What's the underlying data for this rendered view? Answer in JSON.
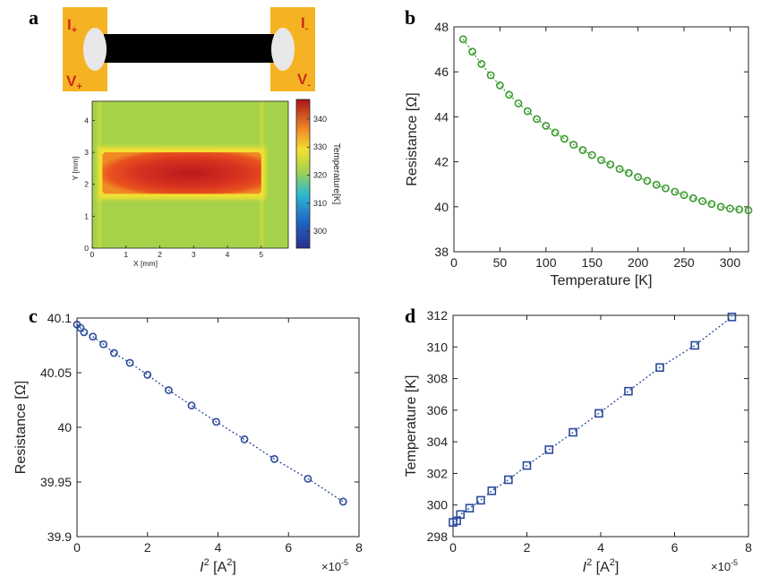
{
  "chart_data": [
    {
      "panel": "a",
      "type": "heatmap",
      "schematic_labels": {
        "i_plus": "I",
        "i_plus_sub": "+",
        "v_plus": "V",
        "v_plus_sub": "+",
        "i_minus": "I",
        "i_minus_sub": "-",
        "v_minus": "V",
        "v_minus_sub": "-"
      },
      "xlabel": "X [mm]",
      "ylabel": "Y [mm]",
      "xlim": [
        0,
        5.8
      ],
      "ylim": [
        0,
        4.6
      ],
      "xticks": [
        "0",
        "1",
        "2",
        "3",
        "4",
        "5"
      ],
      "yticks": [
        "0",
        "1",
        "2",
        "3",
        "4"
      ],
      "colorbar": {
        "label": "Temperature[K]",
        "range": [
          294,
          347
        ],
        "ticks": [
          "300",
          "310",
          "320",
          "330",
          "340"
        ],
        "tick_values": [
          300,
          310,
          320,
          330,
          340
        ]
      },
      "background_temperature": 323,
      "hot_region": {
        "x": [
          0.3,
          5.0
        ],
        "y": [
          1.7,
          3.0
        ],
        "peak_temperature": 343
      }
    },
    {
      "panel": "b",
      "type": "scatter",
      "xlabel": "Temperature [K]",
      "ylabel": "Resistance [Ω]",
      "xlim": [
        0,
        320
      ],
      "ylim": [
        38,
        48
      ],
      "xticks": [
        "0",
        "50",
        "100",
        "150",
        "200",
        "250",
        "300"
      ],
      "yticks": [
        "38",
        "40",
        "42",
        "44",
        "46",
        "48"
      ],
      "color": "#3a9a2e",
      "marker": "circle",
      "series": [
        {
          "x": [
            10,
            20,
            30,
            40,
            50,
            60,
            70,
            80,
            90,
            100,
            110,
            120,
            130,
            140,
            150,
            160,
            170,
            180,
            190,
            200,
            210,
            220,
            230,
            240,
            250,
            260,
            270,
            280,
            290,
            300,
            310,
            320
          ],
          "y": [
            47.45,
            46.9,
            46.35,
            45.85,
            45.4,
            44.98,
            44.6,
            44.25,
            43.9,
            43.6,
            43.3,
            43.02,
            42.76,
            42.52,
            42.3,
            42.08,
            41.88,
            41.68,
            41.5,
            41.32,
            41.15,
            40.98,
            40.82,
            40.67,
            40.52,
            40.38,
            40.25,
            40.12,
            40.0,
            39.92,
            39.88,
            39.84
          ]
        }
      ]
    },
    {
      "panel": "c",
      "type": "scatter",
      "xlabel": "I",
      "xlabel_sup": "2",
      "xlabel_units": " [A",
      "xlabel_units_sup": "2",
      "xlabel_close": "]",
      "ylabel": "Resistance [Ω]",
      "xlim": [
        0,
        8
      ],
      "ylim": [
        39.9,
        40.1
      ],
      "xticks": [
        "0",
        "2",
        "4",
        "6",
        "8"
      ],
      "yticks": [
        "39.9",
        "39.95",
        "40",
        "40.05",
        "40.1"
      ],
      "x_multiplier": "×10",
      "x_multiplier_exp": "-5",
      "color": "#2b4a9c",
      "marker": "circle",
      "series": [
        {
          "x": [
            0.0,
            0.1,
            0.2,
            0.45,
            0.75,
            1.05,
            1.5,
            2.0,
            2.6,
            3.25,
            3.95,
            4.75,
            5.6,
            6.55,
            7.55
          ],
          "y": [
            40.094,
            40.091,
            40.087,
            40.083,
            40.076,
            40.068,
            40.059,
            40.048,
            40.034,
            40.02,
            40.005,
            39.989,
            39.971,
            39.953,
            39.932
          ]
        }
      ]
    },
    {
      "panel": "d",
      "type": "scatter",
      "xlabel": "I",
      "xlabel_sup": "2",
      "xlabel_units": " [A",
      "xlabel_units_sup": "2",
      "xlabel_close": "]",
      "ylabel": "Temperature [K]",
      "xlim": [
        0,
        8
      ],
      "ylim": [
        298,
        312
      ],
      "xticks": [
        "0",
        "2",
        "4",
        "6",
        "8"
      ],
      "yticks": [
        "298",
        "300",
        "302",
        "304",
        "306",
        "308",
        "310",
        "312"
      ],
      "x_multiplier": "×10",
      "x_multiplier_exp": "-5",
      "color": "#2b4a9c",
      "marker": "square",
      "series": [
        {
          "x": [
            0.0,
            0.1,
            0.2,
            0.45,
            0.75,
            1.05,
            1.5,
            2.0,
            2.6,
            3.25,
            3.95,
            4.75,
            5.6,
            6.55,
            7.55
          ],
          "y": [
            298.9,
            299.0,
            299.4,
            299.8,
            300.3,
            300.9,
            301.6,
            302.5,
            303.5,
            304.6,
            305.8,
            307.2,
            308.7,
            310.1,
            311.9
          ]
        }
      ]
    }
  ]
}
